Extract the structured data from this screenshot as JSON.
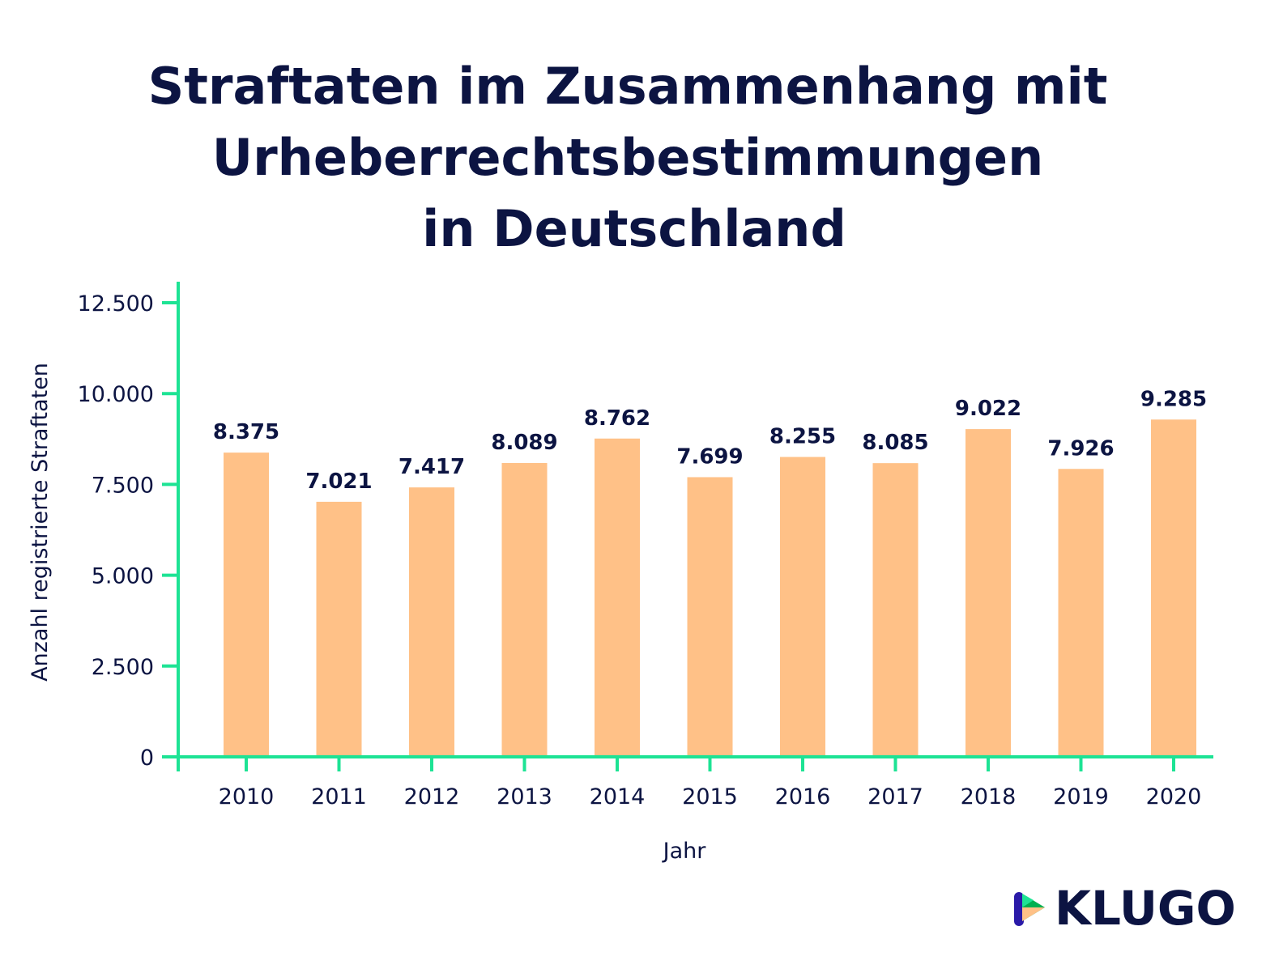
{
  "chart_data": {
    "type": "bar",
    "title_lines": [
      "Straftaten im Zusammenhang mit",
      "Urheberrechtsbestimmungen",
      "in Deutschland"
    ],
    "xlabel": "Jahr",
    "ylabel": "Anzahl registrierte Straftaten",
    "categories": [
      "2010",
      "2011",
      "2012",
      "2013",
      "2014",
      "2015",
      "2016",
      "2017",
      "2018",
      "2019",
      "2020"
    ],
    "values": [
      8375,
      7021,
      7417,
      8089,
      8762,
      7699,
      8255,
      8085,
      9022,
      7926,
      9285
    ],
    "data_labels": [
      "8.375",
      "7.021",
      "7.417",
      "8.089",
      "8.762",
      "7.699",
      "8.255",
      "8.085",
      "9.022",
      "7.926",
      "9.285"
    ],
    "yticks": [
      0,
      2500,
      5000,
      7500,
      10000,
      12500
    ],
    "ytick_labels": [
      "0",
      "2.500",
      "5.000",
      "7.500",
      "10.000",
      "12.500"
    ],
    "ylim": [
      0,
      12500
    ],
    "grid": false,
    "colors": {
      "bar": "#ffc187",
      "axis": "#1de394",
      "text": "#0c1442"
    }
  },
  "logo": {
    "text": "KLUGO"
  }
}
